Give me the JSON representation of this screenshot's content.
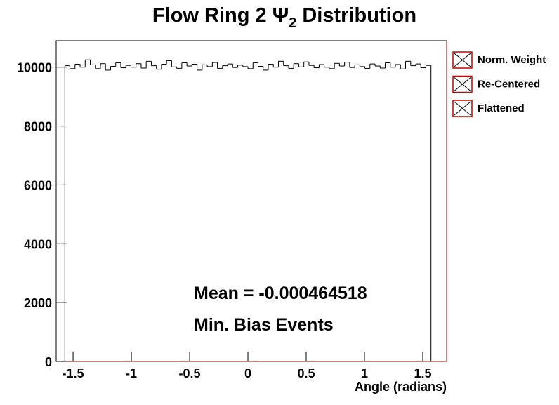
{
  "chart_data": {
    "type": "histogram",
    "title": {
      "text": "Flow Ring 2  Ψ",
      "sub": "2",
      "rest": " Distribution"
    },
    "x_label": "Angle (radians)",
    "annotations": [
      "Mean = -0.000464518",
      "Min. Bias Events"
    ],
    "legend": [
      "Norm. Weight",
      "Re-Centered",
      "Flattened"
    ],
    "legend_color": "#cc0000",
    "color": "#000000",
    "xlim": [
      -1.645,
      1.705
    ],
    "ylim": [
      0,
      10900
    ],
    "xticks": [
      -1.5,
      -1,
      -0.5,
      0,
      0.5,
      1,
      1.5
    ],
    "yticks": [
      0,
      2000,
      4000,
      6000,
      8000,
      10000
    ],
    "bins": [
      -1.5708,
      -1.5272,
      -1.4835,
      -1.4399,
      -1.3963,
      -1.3526,
      -1.309,
      -1.2654,
      -1.2217,
      -1.1781,
      -1.1345,
      -1.0908,
      -1.0472,
      -1.0036,
      -0.9599,
      -0.9163,
      -0.8727,
      -0.829,
      -0.7854,
      -0.7418,
      -0.6981,
      -0.6545,
      -0.6109,
      -0.5672,
      -0.5236,
      -0.48,
      -0.4363,
      -0.3927,
      -0.3491,
      -0.3054,
      -0.2618,
      -0.2182,
      -0.1745,
      -0.1309,
      -0.0873,
      -0.0436,
      0,
      0.0436,
      0.0873,
      0.1309,
      0.1745,
      0.2182,
      0.2618,
      0.3054,
      0.3491,
      0.3927,
      0.4363,
      0.48,
      0.5236,
      0.5672,
      0.6109,
      0.6545,
      0.6981,
      0.7418,
      0.7854,
      0.829,
      0.8727,
      0.9163,
      0.9599,
      1.0036,
      1.0472,
      1.0908,
      1.1345,
      1.1781,
      1.2217,
      1.2654,
      1.309,
      1.3526,
      1.3963,
      1.4399,
      1.4835,
      1.5272,
      1.5708
    ],
    "values": [
      10050,
      9950,
      10100,
      10000,
      10250,
      10080,
      9950,
      10120,
      9900,
      10030,
      10150,
      9980,
      10060,
      10000,
      10120,
      9970,
      10200,
      10050,
      9930,
      10100,
      10220,
      10010,
      9960,
      10150,
      10040,
      10100,
      9900,
      10080,
      10020,
      10160,
      9960,
      10050,
      10110,
      9990,
      10070,
      10020,
      9950,
      10150,
      10030,
      9900,
      10100,
      10000,
      10200,
      10050,
      9960,
      10120,
      10010,
      10180,
      10060,
      9980,
      10090,
      10000,
      9950,
      10130,
      10040,
      10170,
      9990,
      10080,
      10020,
      9960,
      10110,
      10040,
      9970,
      10150,
      10000,
      10090,
      9940,
      10200,
      10050,
      10110,
      9980,
      10060
    ]
  }
}
